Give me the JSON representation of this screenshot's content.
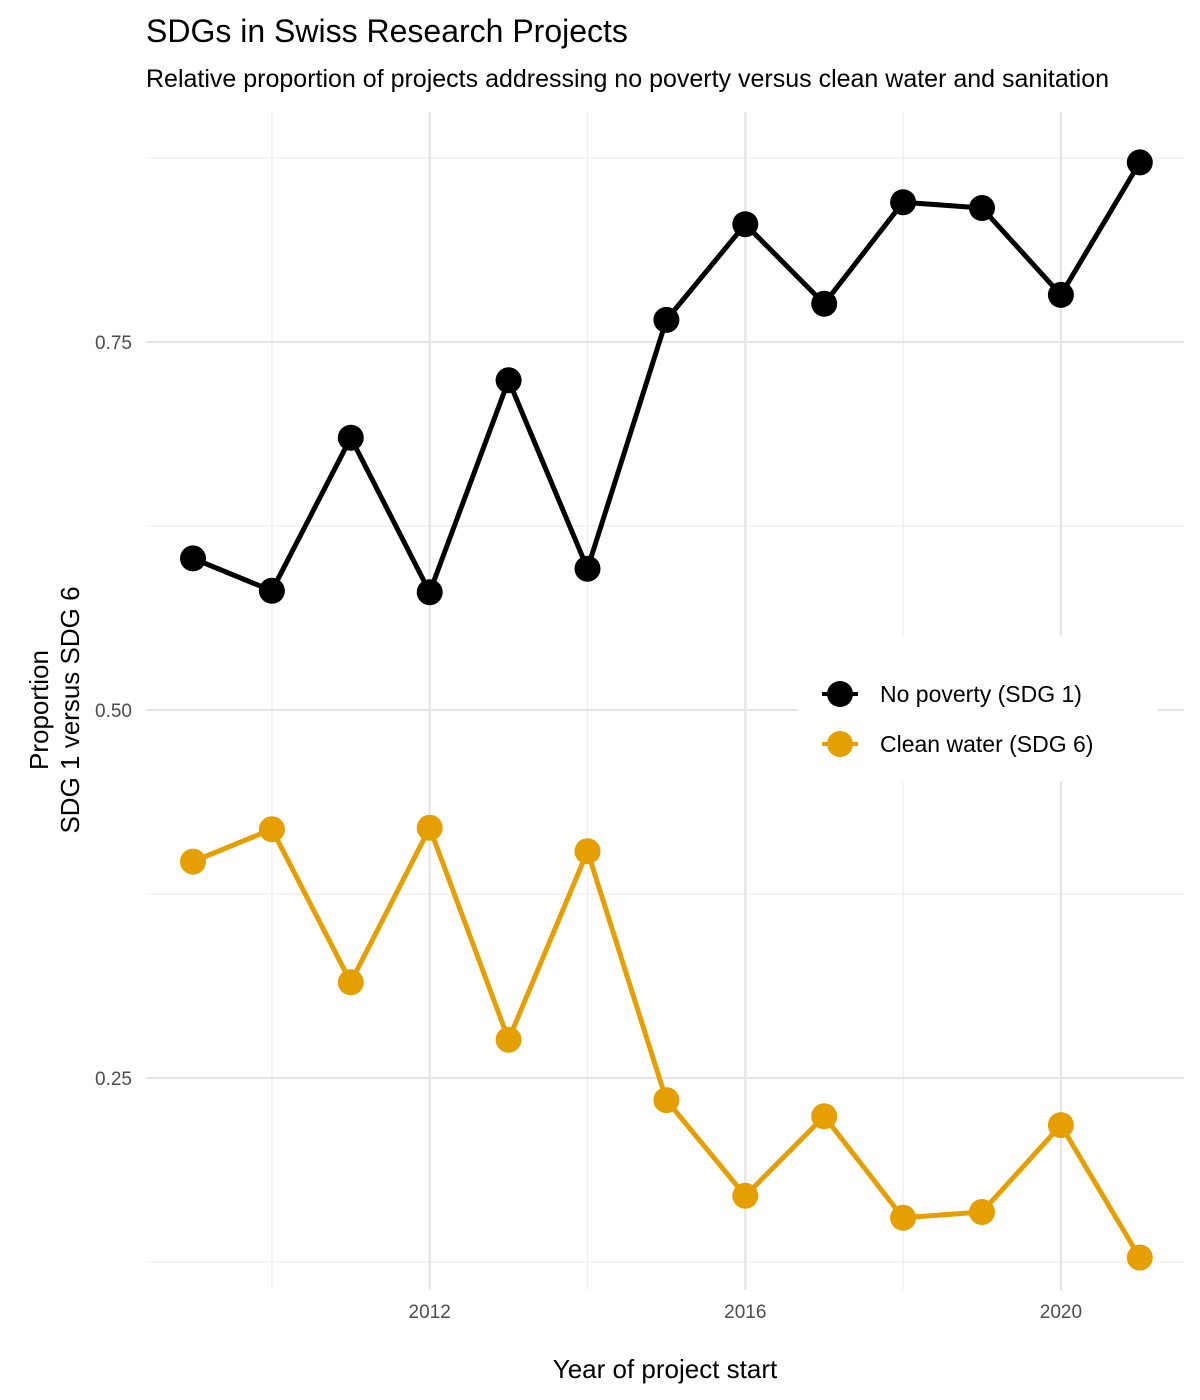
{
  "chart_data": {
    "type": "line",
    "title": "SDGs in Swiss Research Projects",
    "subtitle": "Relative proportion of projects addressing no poverty versus clean water and sanitation",
    "xlabel": "Year of project start",
    "ylabel_lines": [
      "Proportion",
      "SDG 1 versus SDG 6"
    ],
    "x": [
      2009,
      2010,
      2011,
      2012,
      2013,
      2014,
      2015,
      2016,
      2017,
      2018,
      2019,
      2020,
      2021
    ],
    "x_ticks": [
      2012,
      2016,
      2020
    ],
    "y_ticks": [
      0.25,
      0.5,
      0.75
    ],
    "y_tick_labels": [
      "0.25",
      "0.50",
      "0.75"
    ],
    "xlim": [
      2009,
      2021
    ],
    "ylim": [
      0.125,
      0.875
    ],
    "grid": true,
    "legend_position": "right",
    "series": [
      {
        "name": "No poverty (SDG 1)",
        "color": "#000000",
        "values": [
          0.603,
          0.581,
          0.685,
          0.58,
          0.724,
          0.596,
          0.765,
          0.83,
          0.776,
          0.845,
          0.841,
          0.782,
          0.872
        ]
      },
      {
        "name": "Clean water (SDG 6)",
        "color": "#e69f00",
        "values": [
          0.397,
          0.419,
          0.315,
          0.42,
          0.276,
          0.404,
          0.235,
          0.17,
          0.224,
          0.155,
          0.159,
          0.218,
          0.128
        ]
      }
    ]
  }
}
